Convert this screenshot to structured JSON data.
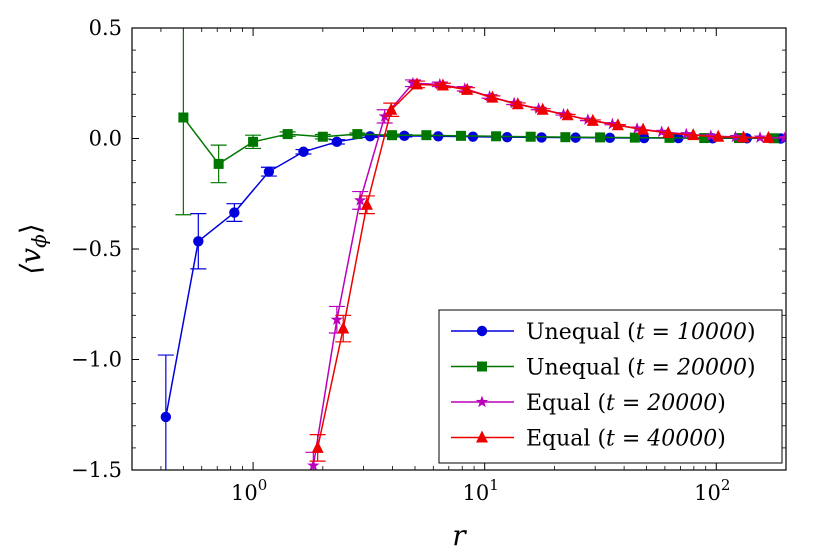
{
  "chart_data": {
    "type": "line",
    "xscale": "log",
    "xlabel": "r",
    "ylabel": "⟨v",
    "ylabel_sub": "ϕ",
    "ylabel_close": "⟩",
    "xlim": [
      0.3,
      200
    ],
    "ylim": [
      -1.5,
      0.5
    ],
    "x_ticks": [
      {
        "value": 1,
        "base": "10",
        "exp": "0"
      },
      {
        "value": 10,
        "base": "10",
        "exp": "1"
      },
      {
        "value": 100,
        "base": "10",
        "exp": "2"
      }
    ],
    "y_ticks": [
      {
        "value": 0.5,
        "label": "0.5"
      },
      {
        "value": 0.0,
        "label": "0.0"
      },
      {
        "value": -0.5,
        "label": "−0.5"
      },
      {
        "value": -1.0,
        "label": "−1.0"
      },
      {
        "value": -1.5,
        "label": "−1.5"
      }
    ],
    "legend_position": "lower-right",
    "series": [
      {
        "name": "Unequal",
        "time_label": "t = 10000",
        "color": "#0000dd",
        "marker": "circle",
        "x": [
          0.42,
          0.58,
          0.83,
          1.17,
          1.65,
          2.3,
          3.2,
          4.5,
          6.3,
          8.9,
          12.5,
          17.6,
          24.7,
          34.7,
          48.8,
          68.6,
          96.4,
          135.5,
          190.0
        ],
        "y": [
          -1.26,
          -0.465,
          -0.335,
          -0.15,
          -0.06,
          -0.015,
          0.01,
          0.012,
          0.01,
          0.008,
          0.006,
          0.005,
          0.004,
          0.003,
          0.002,
          0.002,
          0.001,
          0.001,
          0.0
        ],
        "err": [
          0.28,
          0.125,
          0.04,
          0.02,
          0.01,
          0.01,
          0.005,
          0.005,
          0,
          0,
          0,
          0,
          0,
          0,
          0,
          0,
          0,
          0,
          0
        ]
      },
      {
        "name": "Unequal",
        "time_label": "t = 20000",
        "color": "#007700",
        "marker": "square",
        "x": [
          0.5,
          0.71,
          1.0,
          1.41,
          2.0,
          2.82,
          3.98,
          5.6,
          7.9,
          11.2,
          15.8,
          22.3,
          31.5,
          44.5,
          62.8,
          88.7,
          125.3,
          177.0
        ],
        "y": [
          0.095,
          -0.115,
          -0.015,
          0.02,
          0.008,
          0.02,
          0.015,
          0.015,
          0.012,
          0.01,
          0.008,
          0.006,
          0.005,
          0.004,
          0.003,
          0.002,
          0.002,
          0.001
        ],
        "err": [
          0.44,
          0.085,
          0.03,
          0.01,
          0.01,
          0.005,
          0.005,
          0,
          0,
          0,
          0,
          0,
          0,
          0,
          0,
          0,
          0,
          0
        ]
      },
      {
        "name": "Equal",
        "time_label": "t = 20000",
        "color": "#bb00bb",
        "marker": "star",
        "x": [
          1.82,
          2.3,
          2.9,
          3.7,
          4.9,
          6.4,
          8.2,
          10.5,
          13.4,
          17.1,
          21.9,
          27.9,
          35.6,
          45.5,
          58.1,
          74.2,
          94.7,
          121.0,
          154.5,
          197.0
        ],
        "y": [
          -1.48,
          -0.82,
          -0.28,
          0.1,
          0.25,
          0.245,
          0.225,
          0.19,
          0.16,
          0.135,
          0.11,
          0.085,
          0.065,
          0.045,
          0.03,
          0.02,
          0.012,
          0.007,
          0.004,
          0.002
        ],
        "err": [
          0.06,
          0.06,
          0.04,
          0.03,
          0.015,
          0.01,
          0.01,
          0.008,
          0.006,
          0.005,
          0.004,
          0.004,
          0.003,
          0,
          0,
          0,
          0,
          0,
          0,
          0
        ]
      },
      {
        "name": "Equal",
        "time_label": "t = 40000",
        "color": "#ee0000",
        "marker": "triangle",
        "x": [
          1.9,
          2.45,
          3.1,
          3.95,
          5.1,
          6.6,
          8.4,
          10.8,
          13.9,
          17.8,
          22.8,
          29.3,
          37.6,
          48.3,
          62.0,
          79.5,
          102.0,
          131.0,
          168.0
        ],
        "y": [
          -1.4,
          -0.86,
          -0.3,
          0.13,
          0.245,
          0.24,
          0.22,
          0.185,
          0.155,
          0.13,
          0.105,
          0.08,
          0.06,
          0.04,
          0.025,
          0.015,
          0.008,
          0.005,
          0.003
        ],
        "err": [
          0.06,
          0.06,
          0.04,
          0.03,
          0.015,
          0.01,
          0.01,
          0.008,
          0.006,
          0.005,
          0.004,
          0.004,
          0.003,
          0,
          0,
          0,
          0,
          0,
          0
        ]
      }
    ]
  }
}
